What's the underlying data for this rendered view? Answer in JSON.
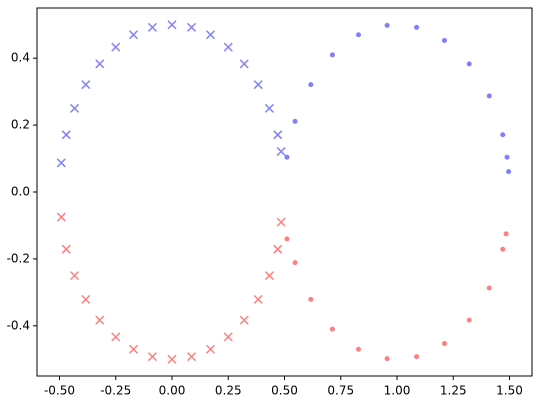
{
  "chart_data": {
    "type": "scatter",
    "xlim": [
      -0.6,
      1.6
    ],
    "ylim": [
      -0.55,
      0.55
    ],
    "xticks": [
      {
        "value": -0.5,
        "label": "-0.50"
      },
      {
        "value": -0.25,
        "label": "-0.25"
      },
      {
        "value": 0,
        "label": "0.00"
      },
      {
        "value": 0.25,
        "label": "0.25"
      },
      {
        "value": 0.5,
        "label": "0.50"
      },
      {
        "value": 0.75,
        "label": "0.75"
      },
      {
        "value": 1,
        "label": "1.00"
      },
      {
        "value": 1.25,
        "label": "1.25"
      },
      {
        "value": 1.5,
        "label": "1.50"
      }
    ],
    "yticks": [
      -0.4,
      -0.2,
      {
        "value": 0,
        "label": "0.0"
      },
      0.2,
      0.4
    ],
    "series": [
      {
        "color": "#0000ff",
        "marker": "x",
        "x": [
          -0.492,
          -0.47,
          -0.433,
          -0.383,
          -0.321,
          -0.25,
          -0.171,
          -0.087,
          0.0,
          0.087,
          0.171,
          0.25,
          0.321,
          0.383,
          0.433,
          0.47,
          0.485
        ],
        "values": [
          0.087,
          0.171,
          0.25,
          0.321,
          0.383,
          0.433,
          0.47,
          0.492,
          0.5,
          0.492,
          0.47,
          0.433,
          0.383,
          0.321,
          0.25,
          0.171,
          0.121
        ]
      },
      {
        "color": "#0000ff",
        "marker": "o",
        "x": [
          0.511,
          0.547,
          0.617,
          0.713,
          0.829,
          0.956,
          1.087,
          1.211,
          1.321,
          1.41,
          1.47,
          1.489,
          1.496
        ],
        "values": [
          0.104,
          0.211,
          0.321,
          0.41,
          0.47,
          0.498,
          0.492,
          0.453,
          0.383,
          0.287,
          0.171,
          0.104,
          0.061
        ]
      },
      {
        "color": "#ff0000",
        "marker": "x",
        "x": [
          -0.492,
          -0.47,
          -0.433,
          -0.383,
          -0.321,
          -0.25,
          -0.171,
          -0.087,
          0.0,
          0.087,
          0.171,
          0.25,
          0.321,
          0.383,
          0.433,
          0.47,
          0.485
        ],
        "values": [
          -0.075,
          -0.171,
          -0.25,
          -0.321,
          -0.383,
          -0.433,
          -0.47,
          -0.492,
          -0.5,
          -0.492,
          -0.47,
          -0.433,
          -0.383,
          -0.321,
          -0.25,
          -0.171,
          -0.09
        ]
      },
      {
        "color": "#ff0000",
        "marker": "o",
        "x": [
          0.511,
          0.547,
          0.617,
          0.713,
          0.829,
          0.956,
          1.087,
          1.211,
          1.321,
          1.41,
          1.47,
          1.485
        ],
        "values": [
          -0.14,
          -0.211,
          -0.321,
          -0.41,
          -0.47,
          -0.498,
          -0.492,
          -0.453,
          -0.383,
          -0.287,
          -0.171,
          -0.125
        ]
      }
    ]
  }
}
